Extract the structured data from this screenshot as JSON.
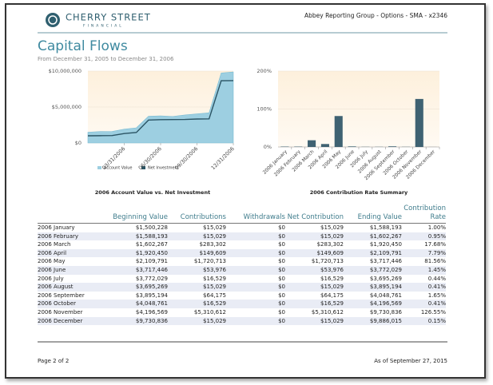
{
  "header": {
    "logo_name": "CHERRY STREET",
    "logo_sub": "FINANCIAL",
    "account": "Abbey Reporting Group - Options - SMA - x2346"
  },
  "title": "Capital Flows",
  "subtitle": "From December 31, 2005 to December 31, 2006",
  "chart_data": [
    {
      "type": "area",
      "title": "2006 Account Value vs. Net Investment",
      "x": [
        null,
        null,
        null,
        "03/31/2006",
        null,
        null,
        "06/30/2006",
        null,
        null,
        "09/30/2006",
        null,
        null,
        "12/31/2006"
      ],
      "series": [
        {
          "name": "Account Value",
          "type": "area",
          "color": "#9dcfe1",
          "values": [
            1500228,
            1588193,
            1602267,
            1920450,
            2109791,
            3717446,
            3772029,
            3695269,
            3895194,
            4048761,
            4196569,
            9730836,
            9886015
          ]
        },
        {
          "name": "Net Investment",
          "type": "line",
          "color": "#2b5464",
          "values": [
            1000000,
            1015000,
            1030000,
            1313000,
            1463000,
            3184000,
            3238000,
            3254000,
            3269000,
            3333000,
            3350000,
            8660000,
            8675000
          ]
        }
      ],
      "ylim": [
        0,
        10000000
      ],
      "yticks": [
        {
          "value": 0,
          "label": "$0"
        },
        {
          "value": 5000000,
          "label": "$5,000,000"
        },
        {
          "value": 10000000,
          "label": "$10,000,000"
        }
      ],
      "grid": true
    },
    {
      "type": "bar",
      "title": "2006 Contribution Rate Summary",
      "categories": [
        "2006 January",
        "2006 February",
        "2006 March",
        "2006 April",
        "2006 May",
        "2006 June",
        "2006 July",
        "2006 August",
        "2006 September",
        "2006 October",
        "2006 November",
        "2006 December"
      ],
      "values": [
        1.0,
        0.95,
        17.68,
        7.79,
        81.56,
        1.45,
        0.44,
        0.41,
        1.65,
        0.41,
        126.55,
        0.15
      ],
      "color": "#3f6272",
      "ylim": [
        0,
        200
      ],
      "yticks": [
        {
          "value": 0,
          "label": "0%"
        },
        {
          "value": 100,
          "label": "100%"
        },
        {
          "value": 200,
          "label": "200%"
        }
      ],
      "grid": true
    }
  ],
  "table": {
    "columns": [
      "Beginning Value",
      "Contributions",
      "Withdrawals",
      "Net Contribution",
      "Ending Value",
      "Contribution Rate"
    ],
    "rows": [
      [
        "2006 January",
        "$1,500,228",
        "$15,029",
        "$0",
        "$15,029",
        "$1,588,193",
        "1.00%"
      ],
      [
        "2006 February",
        "$1,588,193",
        "$15,029",
        "$0",
        "$15,029",
        "$1,602,267",
        "0.95%"
      ],
      [
        "2006 March",
        "$1,602,267",
        "$283,302",
        "$0",
        "$283,302",
        "$1,920,450",
        "17.68%"
      ],
      [
        "2006 April",
        "$1,920,450",
        "$149,609",
        "$0",
        "$149,609",
        "$2,109,791",
        "7.79%"
      ],
      [
        "2006 May",
        "$2,109,791",
        "$1,720,713",
        "$0",
        "$1,720,713",
        "$3,717,446",
        "81.56%"
      ],
      [
        "2006 June",
        "$3,717,446",
        "$53,976",
        "$0",
        "$53,976",
        "$3,772,029",
        "1.45%"
      ],
      [
        "2006 July",
        "$3,772,029",
        "$16,529",
        "$0",
        "$16,529",
        "$3,695,269",
        "0.44%"
      ],
      [
        "2006 August",
        "$3,695,269",
        "$15,029",
        "$0",
        "$15,029",
        "$3,895,194",
        "0.41%"
      ],
      [
        "2006 September",
        "$3,895,194",
        "$64,175",
        "$0",
        "$64,175",
        "$4,048,761",
        "1.65%"
      ],
      [
        "2006 October",
        "$4,048,761",
        "$16,529",
        "$0",
        "$16,529",
        "$4,196,569",
        "0.41%"
      ],
      [
        "2006 November",
        "$4,196,569",
        "$5,310,612",
        "$0",
        "$5,310,612",
        "$9,730,836",
        "126.55%"
      ],
      [
        "2006 December",
        "$9,730,836",
        "$15,029",
        "$0",
        "$15,029",
        "$9,886,015",
        "0.15%"
      ]
    ]
  },
  "footer": {
    "page": "Page 2 of 2",
    "as_of": "As of September 27, 2015"
  }
}
